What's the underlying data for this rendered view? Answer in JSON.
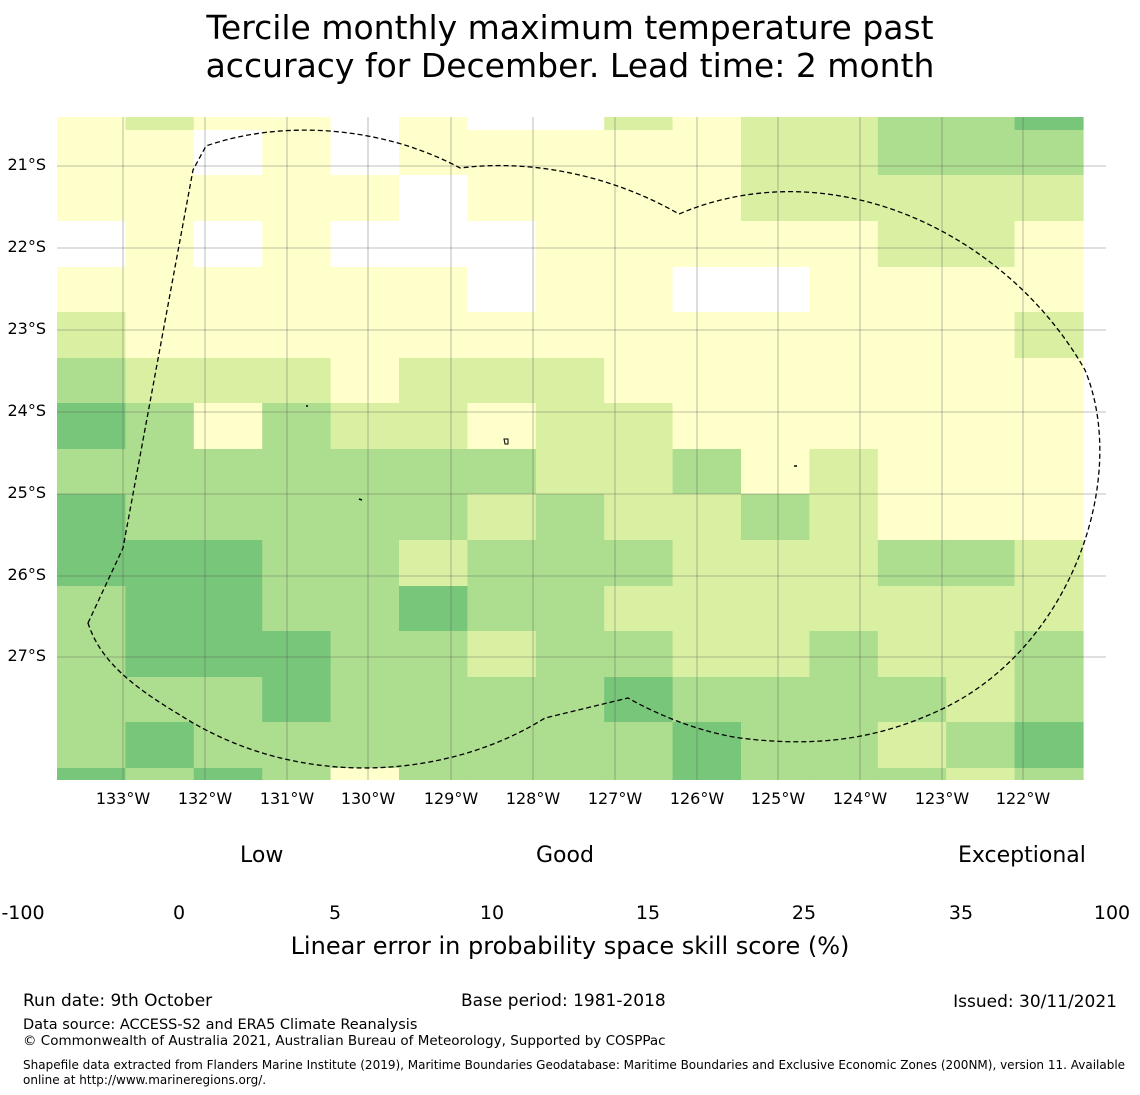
{
  "title": {
    "line1": "Tercile monthly maximum temperature past",
    "line2": "accuracy for December. Lead time: 2 month"
  },
  "map": {
    "latitude_labels": [
      "21°S",
      "22°S",
      "23°S",
      "24°S",
      "25°S",
      "26°S",
      "27°S"
    ],
    "longitude_labels": [
      "133°W",
      "132°W",
      "131°W",
      "130°W",
      "129°W",
      "128°W",
      "127°W",
      "126°W",
      "125°W",
      "124°W",
      "123°W",
      "122°W"
    ],
    "grid_columns": 15,
    "grid_rows": 15,
    "grid_class_values": [
      [
        1,
        2,
        1,
        1,
        0,
        1,
        0,
        0,
        2,
        1,
        2,
        2,
        3,
        3,
        4
      ],
      [
        1,
        1,
        0,
        1,
        0,
        1,
        1,
        1,
        1,
        1,
        2,
        2,
        3,
        3,
        3
      ],
      [
        1,
        1,
        1,
        1,
        1,
        0,
        1,
        1,
        1,
        1,
        2,
        2,
        2,
        2,
        2
      ],
      [
        0,
        1,
        0,
        1,
        0,
        0,
        0,
        1,
        1,
        1,
        1,
        1,
        2,
        2,
        1
      ],
      [
        1,
        1,
        1,
        1,
        1,
        1,
        0,
        1,
        1,
        0,
        0,
        1,
        1,
        1,
        1
      ],
      [
        2,
        1,
        1,
        1,
        1,
        1,
        1,
        1,
        1,
        1,
        1,
        1,
        1,
        1,
        2
      ],
      [
        3,
        2,
        2,
        2,
        1,
        2,
        2,
        2,
        1,
        1,
        1,
        1,
        1,
        1,
        1
      ],
      [
        4,
        3,
        1,
        3,
        2,
        2,
        1,
        2,
        2,
        1,
        1,
        1,
        1,
        1,
        1
      ],
      [
        3,
        3,
        3,
        3,
        3,
        3,
        3,
        2,
        2,
        3,
        1,
        2,
        1,
        1,
        1
      ],
      [
        4,
        3,
        3,
        3,
        3,
        3,
        2,
        3,
        2,
        2,
        3,
        2,
        1,
        1,
        1
      ],
      [
        4,
        4,
        4,
        3,
        3,
        2,
        3,
        3,
        3,
        2,
        2,
        2,
        3,
        3,
        2
      ],
      [
        3,
        4,
        4,
        3,
        3,
        4,
        3,
        3,
        2,
        2,
        2,
        2,
        2,
        2,
        2
      ],
      [
        3,
        4,
        4,
        4,
        3,
        3,
        2,
        3,
        3,
        2,
        2,
        3,
        2,
        2,
        3
      ],
      [
        3,
        3,
        3,
        4,
        3,
        3,
        3,
        3,
        4,
        3,
        3,
        3,
        3,
        2,
        3
      ],
      [
        3,
        4,
        3,
        3,
        3,
        3,
        3,
        3,
        3,
        4,
        3,
        3,
        2,
        3,
        4
      ]
    ],
    "bottom_row_class_values": [
      4,
      3,
      4,
      3,
      1,
      3,
      3,
      3,
      3,
      4,
      3,
      3,
      3,
      2,
      3
    ],
    "eez_outline": "dashed boundary"
  },
  "colorbar": {
    "category_labels": [
      "Low",
      "Good",
      "Exceptional"
    ],
    "tick_labels": [
      "-100",
      "0",
      "5",
      "10",
      "15",
      "25",
      "35",
      "100"
    ],
    "colors": [
      "#ffffff",
      "#ffffcc",
      "#d9f0a3",
      "#addd8e",
      "#78c679",
      "#41ab5d",
      "#238443"
    ],
    "axis_label": "Linear error in probability space skill score (%)"
  },
  "footer": {
    "run_date": "Run date: 9th October",
    "base_period": "Base period: 1981-2018",
    "issued": "Issued: 30/11/2021",
    "data_source": "Data source: ACCESS-S2 and ERA5 Climate Reanalysis",
    "copyright": "© Commonwealth of Australia 2021, Australian Bureau of Meteorology, Supported by COSPPac",
    "shapefile_line1": "Shapefile data extracted from Flanders Marine Institute (2019), Maritime Boundaries Geodatabase: Maritime Boundaries and Exclusive Economic Zones (200NM), version 11. Available",
    "shapefile_line2": "online at http://www.marineregions.org/."
  }
}
